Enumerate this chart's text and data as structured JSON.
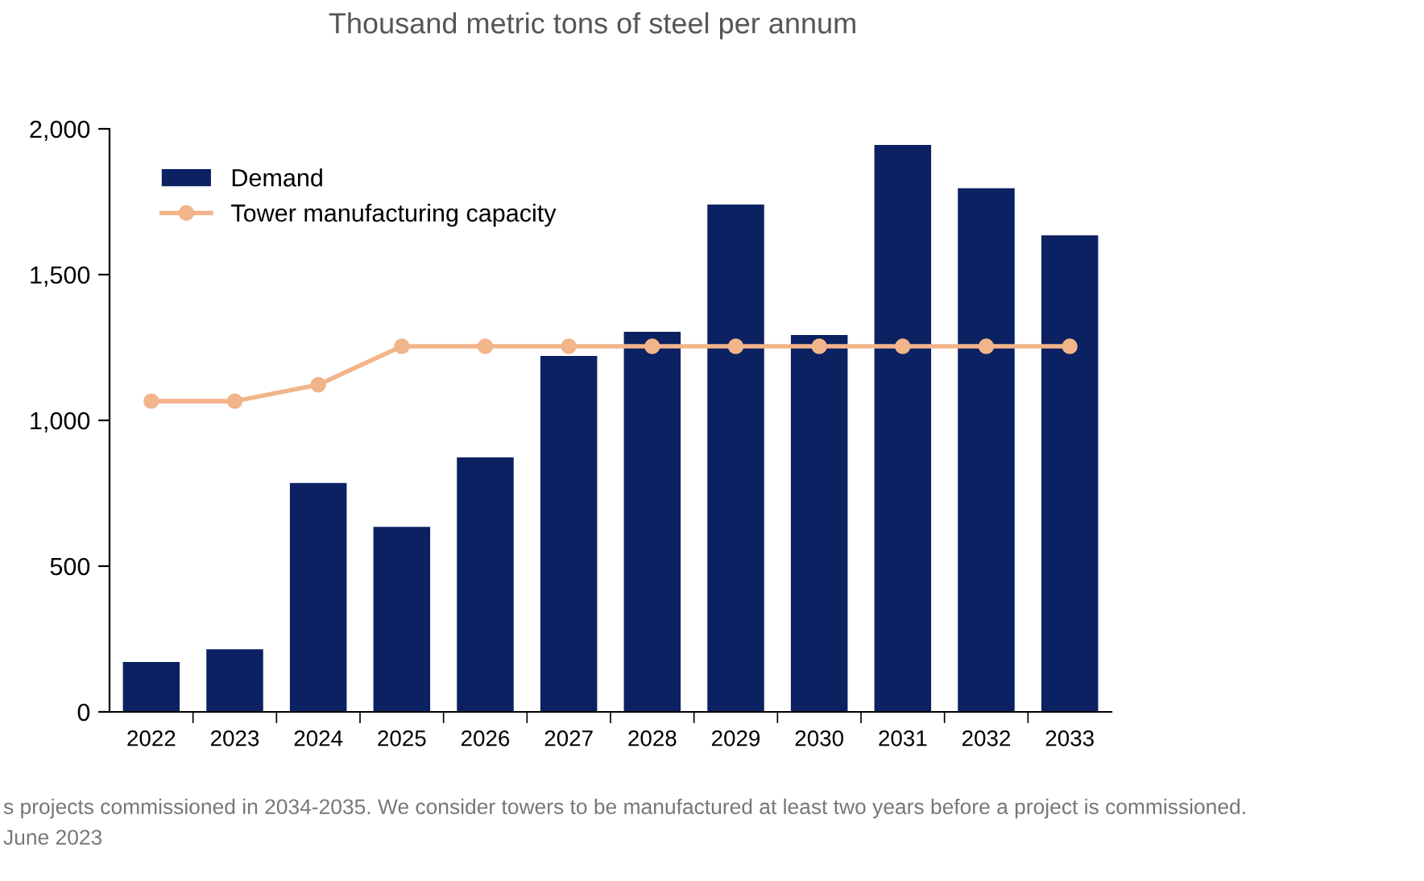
{
  "chart_data": {
    "type": "bar",
    "title": "Thousand metric tons of steel per annum",
    "categories": [
      "2022",
      "2023",
      "2024",
      "2025",
      "2026",
      "2027",
      "2028",
      "2029",
      "2030",
      "2031",
      "2032",
      "2033"
    ],
    "series": [
      {
        "name": "Demand",
        "color": "#0b2161",
        "values": [
          171,
          215,
          785,
          635,
          873,
          1221,
          1304,
          1740,
          1293,
          1945,
          1796,
          1635
        ]
      },
      {
        "name": "Tower manufacturing capacity",
        "type": "line",
        "color": "#f2b48a",
        "marker": "circle",
        "values": [
          1066,
          1066,
          1122,
          1254,
          1254,
          1254,
          1254,
          1254,
          1254,
          1254,
          1254,
          1254
        ]
      }
    ],
    "ylim": [
      0,
      2000
    ],
    "yticks": [
      0,
      {
        "value": 500,
        "label": "500"
      },
      {
        "value": 1000,
        "label": "1,000"
      },
      {
        "value": 1500,
        "label": "1,500"
      },
      {
        "value": 2000,
        "label": "2,000"
      }
    ],
    "grid": false,
    "legend": "top left",
    "annotations": [
      "s projects commissioned in 2034-2035. We consider towers to be manufactured at least two years before a project is commissioned.",
      "June 2023"
    ]
  }
}
